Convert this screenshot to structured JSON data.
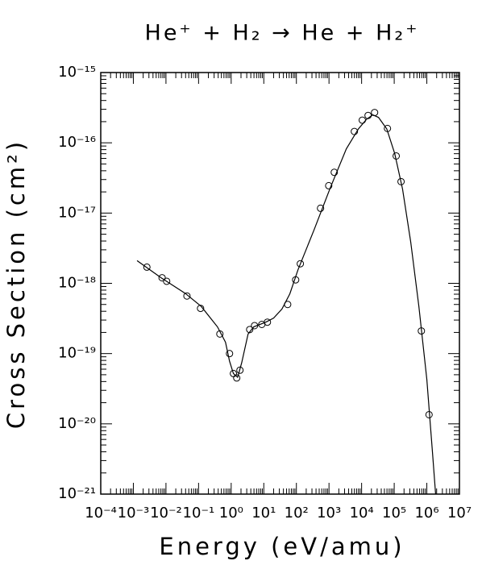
{
  "chart_data": {
    "type": "scatter",
    "title": "He⁺ + H₂ → He + H₂⁺",
    "xlabel": "Energy (eV/amu)",
    "ylabel": "Cross Section (cm²)",
    "xscale": "log",
    "yscale": "log",
    "xlim": [
      0.0001,
      10000000
    ],
    "ylim": [
      1e-21,
      1e-15
    ],
    "xticks": [
      {
        "value": 0.0001,
        "label": "10⁻⁴"
      },
      {
        "value": 0.001,
        "label": "10⁻³"
      },
      {
        "value": 0.01,
        "label": "10⁻²"
      },
      {
        "value": 0.1,
        "label": "10⁻¹"
      },
      {
        "value": 1,
        "label": "10⁰"
      },
      {
        "value": 10,
        "label": "10¹"
      },
      {
        "value": 100,
        "label": "10²"
      },
      {
        "value": 1000,
        "label": "10³"
      },
      {
        "value": 10000,
        "label": "10⁴"
      },
      {
        "value": 100000,
        "label": "10⁵"
      },
      {
        "value": 1000000,
        "label": "10⁶"
      },
      {
        "value": 10000000,
        "label": "10⁷"
      }
    ],
    "yticks": [
      {
        "value": 1e-21,
        "label": "10⁻²¹"
      },
      {
        "value": 1e-20,
        "label": "10⁻²⁰"
      },
      {
        "value": 1e-19,
        "label": "10⁻¹⁹"
      },
      {
        "value": 1e-18,
        "label": "10⁻¹⁸"
      },
      {
        "value": 1e-17,
        "label": "10⁻¹⁷"
      },
      {
        "value": 1e-16,
        "label": "10⁻¹⁶"
      },
      {
        "value": 1e-15,
        "label": "10⁻¹⁵"
      }
    ],
    "minor_ticks": true,
    "color": "#000000",
    "points": {
      "x": [
        0.0026,
        0.0076,
        0.0105,
        0.044,
        0.115,
        0.45,
        0.89,
        1.17,
        1.48,
        1.86,
        3.7,
        5.2,
        8.7,
        12.9,
        54,
        95,
        132,
        550,
        980,
        1450,
        6000,
        10500,
        15800,
        25000,
        62000,
        115000,
        162000,
        680000,
        1170000
      ],
      "y": [
        1.7e-18,
        1.2e-18,
        1.07e-18,
        6.6e-19,
        4.4e-19,
        1.9e-19,
        1e-19,
        5.2e-20,
        4.5e-20,
        5.8e-20,
        2.2e-19,
        2.5e-19,
        2.6e-19,
        2.8e-19,
        5e-19,
        1.12e-18,
        1.9e-18,
        1.17e-17,
        2.45e-17,
        3.8e-17,
        1.45e-16,
        2.1e-16,
        2.45e-16,
        2.7e-16,
        1.6e-16,
        6.5e-17,
        2.8e-17,
        2.1e-19,
        1.35e-20
      ]
    },
    "fit": {
      "x": [
        0.0013,
        0.0071,
        0.039,
        0.12,
        0.38,
        0.67,
        0.89,
        1.17,
        1.58,
        2.1,
        3.3,
        4.9,
        11.5,
        20,
        36,
        63,
        112,
        350,
        1100,
        3400,
        8000,
        14000,
        22000,
        33000,
        59000,
        103000,
        180000,
        320000,
        570000,
        1000000,
        1480000,
        1860000
      ],
      "y": [
        2.1e-18,
        1.2e-18,
        7.2e-19,
        4.7e-19,
        2.4e-19,
        1.45e-19,
        7.8e-20,
        5.2e-20,
        4.6e-20,
        7.4e-20,
        1.9e-19,
        2.4e-19,
        2.8e-19,
        3.2e-19,
        4.3e-19,
        7.1e-19,
        1.56e-18,
        5.8e-18,
        2.3e-17,
        8.2e-17,
        1.58e-16,
        2.15e-16,
        2.5e-16,
        2.3e-16,
        1.58e-16,
        7.1e-17,
        2.2e-17,
        3.9e-18,
        4.7e-19,
        4.3e-20,
        4.1e-21,
        1e-21
      ]
    }
  }
}
